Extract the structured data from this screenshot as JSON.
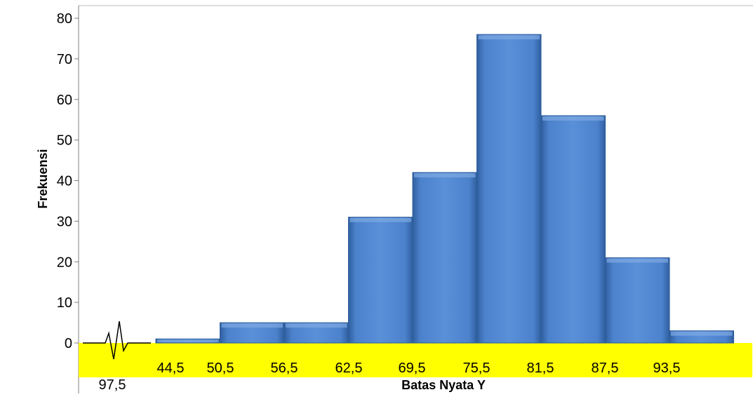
{
  "chart_data": {
    "type": "bar",
    "title": "",
    "xlabel": "Batas Nyata Y",
    "ylabel": "Frekuensi",
    "ylim": [
      0,
      80
    ],
    "yticks": [
      0,
      10,
      20,
      30,
      40,
      50,
      60,
      70,
      80
    ],
    "grid": false,
    "legend": "none",
    "values": [
      1,
      5,
      5,
      31,
      42,
      76,
      56,
      21,
      3
    ],
    "boundary_labels": [
      "44,5",
      "50,5",
      "56,5",
      "62,5",
      "69,5",
      "75,5",
      "81,5",
      "87,5",
      "93,5"
    ],
    "extra_label": "97,5",
    "colors": {
      "bar": "#4a7fc9",
      "bar_dark": "#2c5a9b",
      "label_band": "#ffff00",
      "axis": "#7f7f7f"
    }
  }
}
